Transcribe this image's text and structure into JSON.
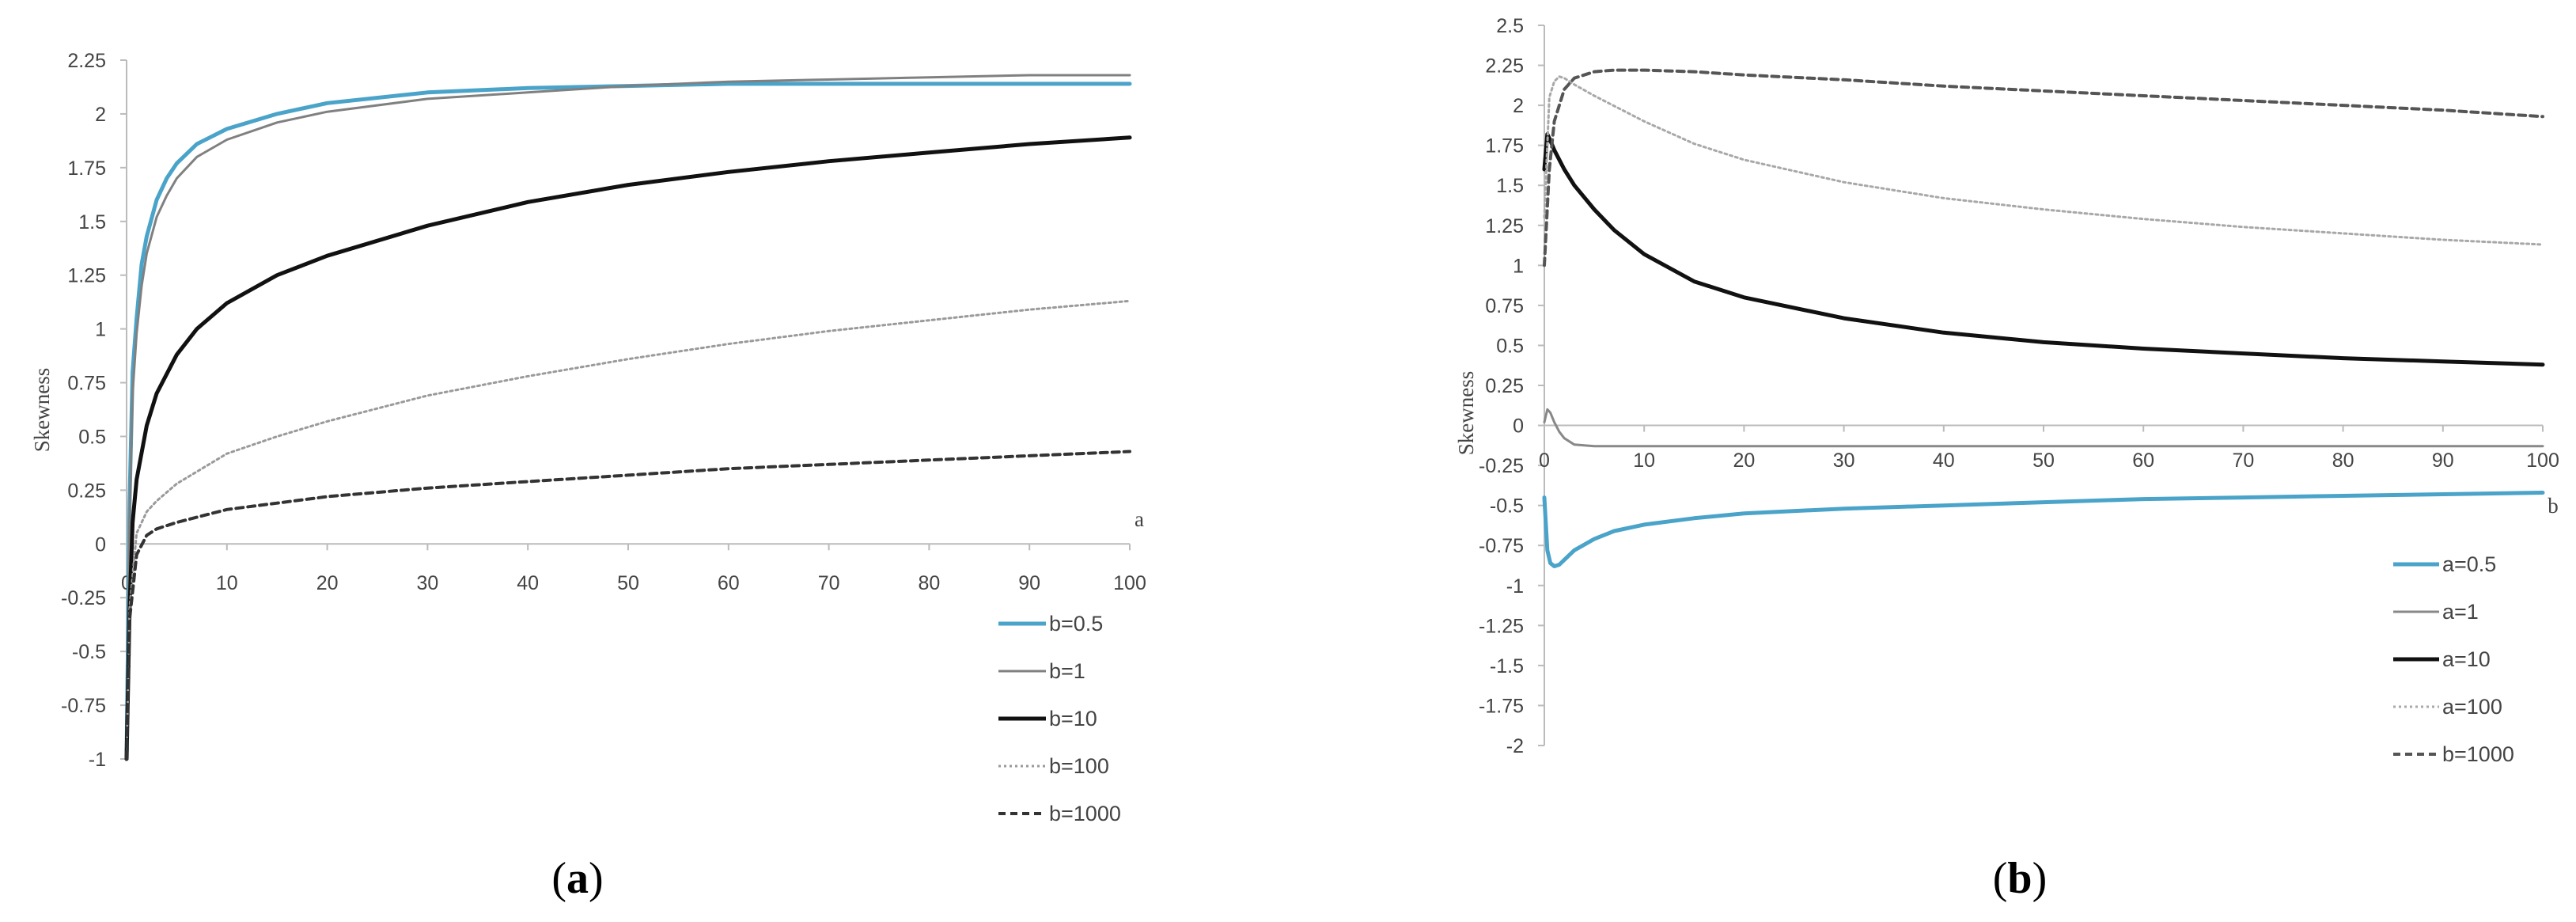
{
  "chart_data": [
    {
      "id": "a",
      "type": "line",
      "panel_label_open": "(",
      "panel_label_letter": "a",
      "panel_label_close": ")",
      "xlabel": "a",
      "ylabel": "Skewness",
      "xlim": [
        0,
        100
      ],
      "ylim": [
        -1,
        2.25
      ],
      "xticks": [
        "0",
        "10",
        "20",
        "30",
        "40",
        "50",
        "60",
        "70",
        "80",
        "90",
        "100"
      ],
      "yticks": [
        "-1",
        "-0.75",
        "-0.5",
        "-0.25",
        "0",
        "0.25",
        "0.5",
        "0.75",
        "1",
        "1.25",
        "1.5",
        "1.75",
        "2",
        "2.25"
      ],
      "legend_position": "bottom-right",
      "series": [
        {
          "name": "b=0.5",
          "color": "#4aa3c9",
          "style": "solid-thick",
          "x": [
            0,
            0.3,
            0.6,
            1,
            1.5,
            2,
            3,
            4,
            5,
            7,
            10,
            15,
            20,
            30,
            40,
            50,
            60,
            70,
            80,
            90,
            100
          ],
          "y": [
            -1,
            0.2,
            0.8,
            1.05,
            1.3,
            1.43,
            1.6,
            1.7,
            1.77,
            1.86,
            1.93,
            2.0,
            2.05,
            2.1,
            2.12,
            2.13,
            2.14,
            2.14,
            2.14,
            2.14,
            2.14
          ]
        },
        {
          "name": "b=1",
          "color": "#808080",
          "style": "solid",
          "x": [
            0,
            0.3,
            0.6,
            1,
            1.5,
            2,
            3,
            4,
            5,
            7,
            10,
            15,
            20,
            30,
            40,
            50,
            60,
            70,
            80,
            90,
            100
          ],
          "y": [
            -1,
            0.1,
            0.7,
            0.98,
            1.2,
            1.35,
            1.52,
            1.62,
            1.7,
            1.8,
            1.88,
            1.96,
            2.01,
            2.07,
            2.1,
            2.13,
            2.15,
            2.16,
            2.17,
            2.18,
            2.18
          ]
        },
        {
          "name": "b=10",
          "color": "#111111",
          "style": "solid-thick",
          "x": [
            0,
            0.3,
            0.6,
            1,
            2,
            3,
            5,
            7,
            10,
            15,
            20,
            30,
            40,
            50,
            60,
            70,
            80,
            90,
            100
          ],
          "y": [
            -1,
            -0.3,
            0.1,
            0.3,
            0.55,
            0.7,
            0.88,
            1.0,
            1.12,
            1.25,
            1.34,
            1.48,
            1.59,
            1.67,
            1.73,
            1.78,
            1.82,
            1.86,
            1.89
          ]
        },
        {
          "name": "b=100",
          "color": "#9a9a9a",
          "style": "dotted",
          "x": [
            0,
            0.3,
            1,
            2,
            3,
            5,
            10,
            15,
            20,
            30,
            40,
            50,
            60,
            70,
            80,
            90,
            100
          ],
          "y": [
            -1,
            -0.3,
            0.05,
            0.15,
            0.2,
            0.28,
            0.42,
            0.5,
            0.57,
            0.69,
            0.78,
            0.86,
            0.93,
            0.99,
            1.04,
            1.09,
            1.13
          ]
        },
        {
          "name": "b=1000",
          "color": "#333333",
          "style": "dashed",
          "x": [
            0,
            0.3,
            1,
            2,
            3,
            5,
            10,
            15,
            20,
            30,
            40,
            50,
            60,
            70,
            80,
            90,
            100
          ],
          "y": [
            -1,
            -0.35,
            -0.05,
            0.04,
            0.07,
            0.1,
            0.16,
            0.19,
            0.22,
            0.26,
            0.29,
            0.32,
            0.35,
            0.37,
            0.39,
            0.41,
            0.43
          ]
        }
      ]
    },
    {
      "id": "b",
      "type": "line",
      "panel_label_open": "(",
      "panel_label_letter": "b",
      "panel_label_close": ")",
      "xlabel": "b",
      "ylabel": "Skewness",
      "xlim": [
        0,
        100
      ],
      "ylim": [
        -2,
        2.5
      ],
      "xticks": [
        "0",
        "10",
        "20",
        "30",
        "40",
        "50",
        "60",
        "70",
        "80",
        "90",
        "100"
      ],
      "yticks": [
        "-2",
        "-1.75",
        "-1.5",
        "-1.25",
        "-1",
        "-0.75",
        "-0.5",
        "-0.25",
        "0",
        "0.25",
        "0.5",
        "0.75",
        "1",
        "1.25",
        "1.5",
        "1.75",
        "2",
        "2.25",
        "2.5"
      ],
      "legend_position": "bottom-right",
      "series": [
        {
          "name": "a=0.5",
          "color": "#4aa3c9",
          "style": "solid-thick",
          "x": [
            0,
            0.3,
            0.6,
            1,
            1.5,
            2,
            3,
            5,
            7,
            10,
            15,
            20,
            30,
            40,
            50,
            60,
            70,
            80,
            90,
            100
          ],
          "y": [
            -0.45,
            -0.78,
            -0.86,
            -0.88,
            -0.87,
            -0.84,
            -0.78,
            -0.71,
            -0.66,
            -0.62,
            -0.58,
            -0.55,
            -0.52,
            -0.5,
            -0.48,
            -0.46,
            -0.45,
            -0.44,
            -0.43,
            -0.42
          ]
        },
        {
          "name": "a=1",
          "color": "#888888",
          "style": "solid",
          "x": [
            0,
            0.3,
            0.6,
            1,
            1.5,
            2,
            3,
            5,
            10,
            20,
            40,
            60,
            80,
            100
          ],
          "y": [
            0.02,
            0.1,
            0.08,
            0.02,
            -0.04,
            -0.08,
            -0.12,
            -0.13,
            -0.13,
            -0.13,
            -0.13,
            -0.13,
            -0.13,
            -0.13
          ]
        },
        {
          "name": "a=10",
          "color": "#111111",
          "style": "solid-thick",
          "x": [
            0,
            0.3,
            0.6,
            1,
            2,
            3,
            5,
            7,
            10,
            15,
            20,
            30,
            40,
            50,
            60,
            70,
            80,
            90,
            100
          ],
          "y": [
            1.6,
            1.82,
            1.78,
            1.72,
            1.6,
            1.5,
            1.35,
            1.22,
            1.07,
            0.9,
            0.8,
            0.67,
            0.58,
            0.52,
            0.48,
            0.45,
            0.42,
            0.4,
            0.38
          ]
        },
        {
          "name": "a=100",
          "color": "#a8a8a8",
          "style": "dotted",
          "x": [
            0,
            0.5,
            1,
            1.5,
            2,
            3,
            5,
            10,
            15,
            20,
            30,
            40,
            50,
            60,
            70,
            80,
            90,
            100
          ],
          "y": [
            1.3,
            2.05,
            2.15,
            2.18,
            2.17,
            2.13,
            2.06,
            1.9,
            1.76,
            1.66,
            1.52,
            1.42,
            1.35,
            1.29,
            1.24,
            1.2,
            1.16,
            1.13
          ]
        },
        {
          "name": "b=1000",
          "color": "#555555",
          "style": "dashed",
          "x": [
            0,
            0.5,
            1,
            2,
            3,
            5,
            7,
            10,
            15,
            20,
            30,
            40,
            50,
            60,
            70,
            80,
            90,
            100
          ],
          "y": [
            1.0,
            1.6,
            1.9,
            2.1,
            2.17,
            2.21,
            2.22,
            2.22,
            2.21,
            2.19,
            2.16,
            2.12,
            2.09,
            2.06,
            2.03,
            2.0,
            1.97,
            1.93
          ]
        }
      ]
    }
  ]
}
